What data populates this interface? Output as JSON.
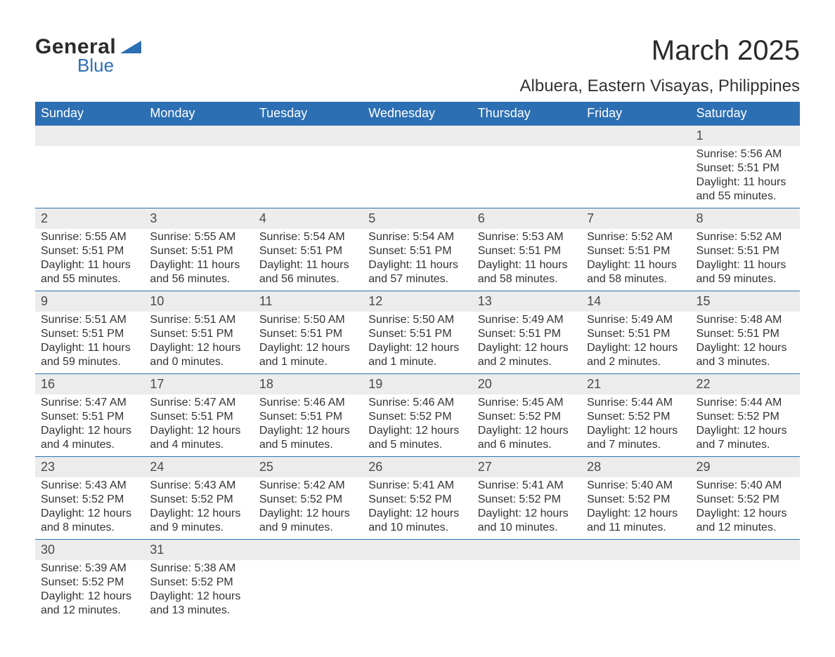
{
  "logo": {
    "general": "General",
    "blue": "Blue"
  },
  "title": "March 2025",
  "location": "Albuera, Eastern Visayas, Philippines",
  "colors": {
    "header_bg": "#2d6fb3",
    "header_text": "#ffffff",
    "daynum_bg": "#ececec",
    "row_border": "#2d6fb3",
    "body_text": "#333333",
    "page_bg": "#ffffff",
    "logo_accent": "#2d6fb3"
  },
  "typography": {
    "title_fontsize": 40,
    "location_fontsize": 24,
    "header_fontsize": 18,
    "daynum_fontsize": 18,
    "body_fontsize": 16,
    "font_family": "Arial"
  },
  "weekdays": [
    "Sunday",
    "Monday",
    "Tuesday",
    "Wednesday",
    "Thursday",
    "Friday",
    "Saturday"
  ],
  "weeks": [
    [
      null,
      null,
      null,
      null,
      null,
      null,
      {
        "day": "1",
        "sunrise": "Sunrise: 5:56 AM",
        "sunset": "Sunset: 5:51 PM",
        "daylight": "Daylight: 11 hours and 55 minutes."
      }
    ],
    [
      {
        "day": "2",
        "sunrise": "Sunrise: 5:55 AM",
        "sunset": "Sunset: 5:51 PM",
        "daylight": "Daylight: 11 hours and 55 minutes."
      },
      {
        "day": "3",
        "sunrise": "Sunrise: 5:55 AM",
        "sunset": "Sunset: 5:51 PM",
        "daylight": "Daylight: 11 hours and 56 minutes."
      },
      {
        "day": "4",
        "sunrise": "Sunrise: 5:54 AM",
        "sunset": "Sunset: 5:51 PM",
        "daylight": "Daylight: 11 hours and 56 minutes."
      },
      {
        "day": "5",
        "sunrise": "Sunrise: 5:54 AM",
        "sunset": "Sunset: 5:51 PM",
        "daylight": "Daylight: 11 hours and 57 minutes."
      },
      {
        "day": "6",
        "sunrise": "Sunrise: 5:53 AM",
        "sunset": "Sunset: 5:51 PM",
        "daylight": "Daylight: 11 hours and 58 minutes."
      },
      {
        "day": "7",
        "sunrise": "Sunrise: 5:52 AM",
        "sunset": "Sunset: 5:51 PM",
        "daylight": "Daylight: 11 hours and 58 minutes."
      },
      {
        "day": "8",
        "sunrise": "Sunrise: 5:52 AM",
        "sunset": "Sunset: 5:51 PM",
        "daylight": "Daylight: 11 hours and 59 minutes."
      }
    ],
    [
      {
        "day": "9",
        "sunrise": "Sunrise: 5:51 AM",
        "sunset": "Sunset: 5:51 PM",
        "daylight": "Daylight: 11 hours and 59 minutes."
      },
      {
        "day": "10",
        "sunrise": "Sunrise: 5:51 AM",
        "sunset": "Sunset: 5:51 PM",
        "daylight": "Daylight: 12 hours and 0 minutes."
      },
      {
        "day": "11",
        "sunrise": "Sunrise: 5:50 AM",
        "sunset": "Sunset: 5:51 PM",
        "daylight": "Daylight: 12 hours and 1 minute."
      },
      {
        "day": "12",
        "sunrise": "Sunrise: 5:50 AM",
        "sunset": "Sunset: 5:51 PM",
        "daylight": "Daylight: 12 hours and 1 minute."
      },
      {
        "day": "13",
        "sunrise": "Sunrise: 5:49 AM",
        "sunset": "Sunset: 5:51 PM",
        "daylight": "Daylight: 12 hours and 2 minutes."
      },
      {
        "day": "14",
        "sunrise": "Sunrise: 5:49 AM",
        "sunset": "Sunset: 5:51 PM",
        "daylight": "Daylight: 12 hours and 2 minutes."
      },
      {
        "day": "15",
        "sunrise": "Sunrise: 5:48 AM",
        "sunset": "Sunset: 5:51 PM",
        "daylight": "Daylight: 12 hours and 3 minutes."
      }
    ],
    [
      {
        "day": "16",
        "sunrise": "Sunrise: 5:47 AM",
        "sunset": "Sunset: 5:51 PM",
        "daylight": "Daylight: 12 hours and 4 minutes."
      },
      {
        "day": "17",
        "sunrise": "Sunrise: 5:47 AM",
        "sunset": "Sunset: 5:51 PM",
        "daylight": "Daylight: 12 hours and 4 minutes."
      },
      {
        "day": "18",
        "sunrise": "Sunrise: 5:46 AM",
        "sunset": "Sunset: 5:51 PM",
        "daylight": "Daylight: 12 hours and 5 minutes."
      },
      {
        "day": "19",
        "sunrise": "Sunrise: 5:46 AM",
        "sunset": "Sunset: 5:52 PM",
        "daylight": "Daylight: 12 hours and 5 minutes."
      },
      {
        "day": "20",
        "sunrise": "Sunrise: 5:45 AM",
        "sunset": "Sunset: 5:52 PM",
        "daylight": "Daylight: 12 hours and 6 minutes."
      },
      {
        "day": "21",
        "sunrise": "Sunrise: 5:44 AM",
        "sunset": "Sunset: 5:52 PM",
        "daylight": "Daylight: 12 hours and 7 minutes."
      },
      {
        "day": "22",
        "sunrise": "Sunrise: 5:44 AM",
        "sunset": "Sunset: 5:52 PM",
        "daylight": "Daylight: 12 hours and 7 minutes."
      }
    ],
    [
      {
        "day": "23",
        "sunrise": "Sunrise: 5:43 AM",
        "sunset": "Sunset: 5:52 PM",
        "daylight": "Daylight: 12 hours and 8 minutes."
      },
      {
        "day": "24",
        "sunrise": "Sunrise: 5:43 AM",
        "sunset": "Sunset: 5:52 PM",
        "daylight": "Daylight: 12 hours and 9 minutes."
      },
      {
        "day": "25",
        "sunrise": "Sunrise: 5:42 AM",
        "sunset": "Sunset: 5:52 PM",
        "daylight": "Daylight: 12 hours and 9 minutes."
      },
      {
        "day": "26",
        "sunrise": "Sunrise: 5:41 AM",
        "sunset": "Sunset: 5:52 PM",
        "daylight": "Daylight: 12 hours and 10 minutes."
      },
      {
        "day": "27",
        "sunrise": "Sunrise: 5:41 AM",
        "sunset": "Sunset: 5:52 PM",
        "daylight": "Daylight: 12 hours and 10 minutes."
      },
      {
        "day": "28",
        "sunrise": "Sunrise: 5:40 AM",
        "sunset": "Sunset: 5:52 PM",
        "daylight": "Daylight: 12 hours and 11 minutes."
      },
      {
        "day": "29",
        "sunrise": "Sunrise: 5:40 AM",
        "sunset": "Sunset: 5:52 PM",
        "daylight": "Daylight: 12 hours and 12 minutes."
      }
    ],
    [
      {
        "day": "30",
        "sunrise": "Sunrise: 5:39 AM",
        "sunset": "Sunset: 5:52 PM",
        "daylight": "Daylight: 12 hours and 12 minutes."
      },
      {
        "day": "31",
        "sunrise": "Sunrise: 5:38 AM",
        "sunset": "Sunset: 5:52 PM",
        "daylight": "Daylight: 12 hours and 13 minutes."
      },
      null,
      null,
      null,
      null,
      null
    ]
  ]
}
